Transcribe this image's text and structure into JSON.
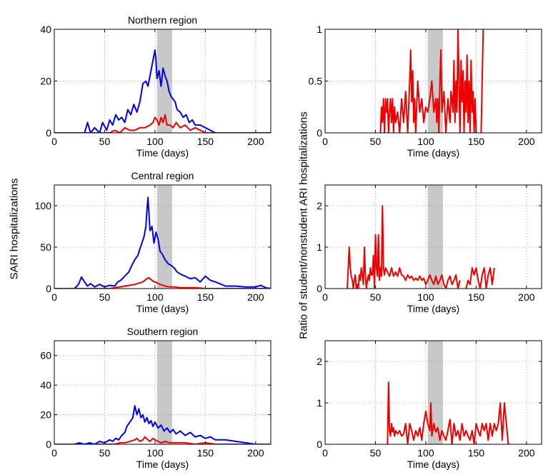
{
  "figure": {
    "ylabel_left": "SARI hospitalizations",
    "ylabel_right": "Ratio of student/nonstudent ARI hospitalizations"
  },
  "colors": {
    "blue": "#0000ee",
    "red": "#ee0000",
    "shade": "#c8c8c8",
    "grid": "#8a8a8a"
  },
  "chart_data": [
    {
      "type": "line",
      "title": "Northern region",
      "xlabel": "Time (days)",
      "ylabel": "",
      "xlim": [
        0,
        215
      ],
      "ylim": [
        0,
        40
      ],
      "xticks": [
        0,
        50,
        100,
        150,
        200
      ],
      "yticks": [
        0,
        20,
        40
      ],
      "ytick_labels": [
        "0",
        "20",
        "40"
      ],
      "grid": true,
      "shaded_x": [
        102,
        117
      ],
      "series": [
        {
          "color": "blue",
          "x": [
            0,
            30,
            33,
            36,
            40,
            45,
            48,
            52,
            55,
            58,
            61,
            64,
            67,
            70,
            73,
            76,
            79,
            82,
            85,
            88,
            91,
            93,
            95,
            97,
            99,
            100,
            101,
            102,
            104,
            106,
            108,
            110,
            112,
            114,
            116,
            118,
            120,
            122,
            125,
            128,
            131,
            134,
            137,
            140,
            145,
            150,
            155,
            160,
            215
          ],
          "y": [
            0,
            0,
            4,
            0,
            2,
            0,
            4,
            1,
            5,
            3,
            7,
            5,
            6,
            4,
            9,
            7,
            11,
            8,
            12,
            19,
            20,
            18,
            22,
            26,
            30,
            32,
            28,
            21,
            24,
            18,
            25,
            22,
            20,
            16,
            14,
            13,
            12,
            9,
            8,
            6,
            7,
            4,
            5,
            3,
            3,
            2,
            1,
            0,
            0
          ]
        },
        {
          "color": "red",
          "x": [
            0,
            55,
            60,
            65,
            70,
            75,
            80,
            85,
            90,
            95,
            98,
            100,
            102,
            104,
            106,
            108,
            110,
            112,
            115,
            118,
            121,
            125,
            130,
            135,
            140,
            145,
            150,
            215
          ],
          "y": [
            0,
            0,
            1,
            0,
            2,
            1,
            1,
            2,
            2,
            3,
            4,
            6,
            5,
            3,
            6,
            4,
            7,
            3,
            3,
            2,
            4,
            2,
            3,
            1,
            2,
            1,
            0,
            0
          ]
        }
      ]
    },
    {
      "type": "line",
      "title": "Central region",
      "xlabel": "Time (days)",
      "ylabel": "",
      "xlim": [
        0,
        215
      ],
      "ylim": [
        0,
        125
      ],
      "xticks": [
        0,
        50,
        100,
        150,
        200
      ],
      "yticks": [
        0,
        50,
        100
      ],
      "ytick_labels": [
        "0",
        "50",
        "100"
      ],
      "grid": true,
      "shaded_x": [
        102,
        117
      ],
      "series": [
        {
          "color": "blue",
          "x": [
            0,
            20,
            24,
            27,
            30,
            33,
            36,
            40,
            45,
            50,
            55,
            60,
            63,
            66,
            70,
            74,
            77,
            80,
            83,
            85,
            87,
            89,
            91,
            92,
            93,
            94,
            95,
            97,
            99,
            101,
            103,
            105,
            107,
            110,
            113,
            116,
            119,
            122,
            126,
            130,
            135,
            140,
            145,
            150,
            155,
            160,
            170,
            180,
            190,
            200,
            205,
            210,
            215
          ],
          "y": [
            0,
            0,
            5,
            14,
            8,
            3,
            6,
            2,
            5,
            2,
            4,
            3,
            8,
            10,
            15,
            20,
            28,
            35,
            40,
            48,
            55,
            62,
            75,
            95,
            110,
            90,
            70,
            75,
            55,
            68,
            60,
            45,
            42,
            35,
            30,
            28,
            25,
            20,
            17,
            15,
            12,
            13,
            8,
            15,
            10,
            8,
            3,
            3,
            2,
            2,
            4,
            1,
            0
          ]
        },
        {
          "color": "red",
          "x": [
            0,
            55,
            60,
            65,
            70,
            75,
            80,
            85,
            88,
            90,
            92,
            94,
            96,
            98,
            100,
            102,
            105,
            108,
            110,
            115,
            120,
            125,
            130,
            140,
            150,
            160,
            170,
            215
          ],
          "y": [
            0,
            0,
            1,
            2,
            3,
            4,
            5,
            7,
            8,
            10,
            12,
            13,
            11,
            9,
            8,
            7,
            5,
            4,
            3,
            2,
            2,
            1,
            1,
            1,
            0,
            0,
            0,
            0
          ]
        }
      ]
    },
    {
      "type": "line",
      "title": "Southern region",
      "xlabel": "Time (days)",
      "ylabel": "",
      "xlim": [
        0,
        215
      ],
      "ylim": [
        0,
        70
      ],
      "xticks": [
        0,
        50,
        100,
        150,
        200
      ],
      "yticks": [
        0,
        20,
        40,
        60
      ],
      "ytick_labels": [
        "0",
        "20",
        "40",
        "60"
      ],
      "grid": true,
      "shaded_x": [
        102,
        117
      ],
      "series": [
        {
          "color": "blue",
          "x": [
            0,
            20,
            25,
            30,
            35,
            40,
            45,
            50,
            55,
            58,
            61,
            64,
            67,
            70,
            72,
            74,
            76,
            78,
            79,
            80,
            82,
            84,
            86,
            88,
            90,
            92,
            94,
            96,
            98,
            100,
            103,
            106,
            109,
            112,
            115,
            118,
            121,
            125,
            130,
            135,
            140,
            145,
            150,
            155,
            160,
            170,
            180,
            190,
            200,
            215
          ],
          "y": [
            0,
            0,
            1,
            0,
            1,
            0,
            2,
            1,
            3,
            2,
            4,
            3,
            6,
            8,
            12,
            14,
            16,
            18,
            22,
            26,
            20,
            24,
            18,
            20,
            15,
            18,
            14,
            16,
            12,
            15,
            11,
            13,
            9,
            11,
            8,
            10,
            7,
            9,
            6,
            8,
            5,
            6,
            4,
            5,
            3,
            3,
            2,
            1,
            0,
            0
          ]
        },
        {
          "color": "red",
          "x": [
            0,
            60,
            65,
            70,
            75,
            80,
            82,
            85,
            88,
            90,
            93,
            95,
            98,
            100,
            103,
            106,
            110,
            115,
            120,
            130,
            140,
            150,
            160,
            215
          ],
          "y": [
            0,
            0,
            1,
            1,
            2,
            3,
            4,
            2,
            3,
            5,
            3,
            2,
            4,
            3,
            2,
            1,
            2,
            1,
            1,
            1,
            0,
            1,
            0,
            0
          ]
        }
      ]
    },
    {
      "type": "line",
      "title": "",
      "xlabel": "Time (days)",
      "ylabel": "",
      "xlim": [
        0,
        215
      ],
      "ylim": [
        0,
        1
      ],
      "xticks": [
        0,
        50,
        100,
        150,
        200
      ],
      "yticks": [
        0,
        0.5,
        1
      ],
      "ytick_labels": [
        "0",
        "0.5",
        "1"
      ],
      "grid": true,
      "shaded_x": [
        102,
        117
      ],
      "series": [
        {
          "color": "red",
          "x": [
            55,
            56,
            57,
            58,
            59,
            60,
            61,
            62,
            63,
            64,
            65,
            66,
            67,
            68,
            69,
            70,
            72,
            74,
            76,
            78,
            80,
            82,
            84,
            85,
            86,
            87,
            88,
            89,
            90,
            91,
            92,
            94,
            96,
            98,
            100,
            102,
            104,
            106,
            108,
            110,
            111,
            112,
            113,
            114,
            115,
            116,
            118,
            120,
            122,
            124,
            125,
            126,
            127,
            128,
            129,
            130,
            131,
            132,
            133,
            134,
            135,
            136,
            137,
            138,
            139,
            140,
            141,
            142,
            143,
            144,
            145,
            146,
            147,
            148,
            149,
            150
          ],
          "y": [
            0,
            0.25,
            0.1,
            0.33,
            0,
            0.33,
            0.2,
            0.33,
            0,
            0.2,
            0.33,
            0.1,
            0.33,
            0,
            0.25,
            0.1,
            0.2,
            0,
            0.33,
            0.1,
            0.4,
            0,
            0.5,
            0.8,
            0.3,
            0.6,
            0.1,
            0.33,
            0,
            0.25,
            0.5,
            0.2,
            0.33,
            0.1,
            0.25,
            0.2,
            0.33,
            0.5,
            0.2,
            0.33,
            0.1,
            0.33,
            0,
            0.5,
            0.8,
            0.2,
            0.4,
            0,
            0.33,
            0.1,
            0.4,
            0.33,
            0.2,
            0.7,
            0.1,
            0.5,
            0.2,
            1,
            0.5,
            0,
            0.7,
            0.3,
            0.6,
            0,
            0.5,
            0.2,
            0.75,
            0.1,
            0.5,
            0,
            0.7,
            0.2,
            0.4,
            0,
            0.33,
            0
          ]
        },
        {
          "color": "red",
          "x": [
            155,
            157
          ],
          "y": [
            0,
            1
          ]
        }
      ]
    },
    {
      "type": "line",
      "title": "",
      "xlabel": "Time (days)",
      "ylabel": "",
      "xlim": [
        0,
        215
      ],
      "ylim": [
        0,
        2.5
      ],
      "xticks": [
        0,
        50,
        100,
        150,
        200
      ],
      "yticks": [
        0,
        1,
        2
      ],
      "ytick_labels": [
        "0",
        "1",
        "2"
      ],
      "grid": true,
      "shaded_x": [
        102,
        117
      ],
      "series": [
        {
          "color": "red",
          "x": [
            22,
            23,
            24,
            25,
            26,
            27,
            28,
            29,
            30,
            31,
            32,
            33,
            34,
            35,
            36,
            37,
            38,
            39,
            40,
            41,
            42,
            43,
            44,
            45,
            46,
            47,
            48,
            49,
            50,
            51,
            52,
            53,
            54,
            55,
            56,
            57,
            58,
            59,
            60,
            62,
            64,
            66,
            68,
            70,
            72,
            74,
            76,
            78,
            80,
            82,
            84,
            86,
            88,
            90,
            92,
            94,
            96,
            98,
            100,
            102,
            104,
            106,
            108,
            110,
            112,
            114,
            116,
            118,
            120,
            122,
            124,
            126,
            128,
            130,
            132,
            134
          ],
          "y": [
            0,
            0.5,
            1,
            0.5,
            0.3,
            0.2,
            0,
            0.2,
            0.33,
            0,
            0.1,
            0,
            0.33,
            0.2,
            0.5,
            0.33,
            0.1,
            1,
            0.33,
            0,
            0.2,
            0.33,
            0.2,
            0.5,
            0.33,
            0.33,
            0.8,
            0,
            1.3,
            0.5,
            0.3,
            1.3,
            0.2,
            0.5,
            0.3,
            2,
            0.5,
            0.33,
            0.5,
            0.4,
            0.3,
            0.5,
            0.3,
            0.4,
            0.3,
            0.5,
            0.33,
            0.3,
            0.2,
            0.33,
            0.25,
            0.3,
            0.2,
            0.25,
            0.2,
            0.3,
            0.2,
            0.25,
            0.1,
            0.2,
            0.33,
            0.2,
            0.1,
            0.3,
            0.1,
            0.2,
            0.33,
            0.1,
            0,
            0.2,
            0.3,
            0.1,
            0.2,
            0.33,
            0,
            0.2
          ]
        },
        {
          "color": "red",
          "x": [
            140,
            142,
            144,
            146,
            148,
            150,
            152,
            154,
            156,
            158,
            160,
            162,
            164,
            166,
            168
          ],
          "y": [
            0,
            0.2,
            0.1,
            0.5,
            0.33,
            0.5,
            0.2,
            0,
            0.33,
            0.5,
            0,
            0.33,
            0.5,
            0.1,
            0.5
          ]
        }
      ]
    },
    {
      "type": "line",
      "title": "",
      "xlabel": "Time (days)",
      "ylabel": "",
      "xlim": [
        0,
        215
      ],
      "ylim": [
        0,
        2.5
      ],
      "xticks": [
        0,
        50,
        100,
        150,
        200
      ],
      "yticks": [
        0,
        1,
        2
      ],
      "ytick_labels": [
        "0",
        "1",
        "2"
      ],
      "grid": true,
      "shaded_x": [
        102,
        117
      ],
      "series": [
        {
          "color": "red",
          "x": [
            62,
            63,
            64,
            65,
            66,
            67,
            68,
            69,
            70,
            72,
            74,
            76,
            78,
            80,
            82,
            84,
            86,
            88,
            90,
            92,
            94,
            96,
            98,
            100,
            102,
            104,
            105,
            106,
            108,
            110,
            112,
            114,
            116,
            118,
            120,
            122,
            124,
            126,
            128,
            130,
            132,
            134,
            136,
            138,
            140,
            142,
            144,
            146,
            148,
            150,
            152,
            154,
            156,
            158,
            160,
            162,
            164,
            166,
            168,
            170,
            172,
            174,
            176,
            178,
            180,
            182
          ],
          "y": [
            0,
            1.5,
            0.33,
            0.2,
            0.5,
            0.3,
            0.4,
            0.2,
            0.33,
            0.25,
            0.33,
            0.2,
            0.25,
            0.5,
            0,
            0.5,
            0.33,
            0.1,
            0.33,
            0.2,
            0.4,
            0.1,
            0.5,
            0.8,
            0.5,
            0.33,
            1,
            0.2,
            0.5,
            0.3,
            0.4,
            0.1,
            0.33,
            0.2,
            0.1,
            0.33,
            0.6,
            0,
            0.5,
            0.2,
            0.33,
            0.1,
            0.5,
            0.2,
            0.33,
            0.2,
            0.1,
            0.33,
            0,
            0.5,
            0.33,
            0.2,
            0.5,
            0.33,
            0.5,
            0.1,
            0.5,
            0.2,
            0.5,
            0.33,
            0.5,
            1,
            0.1,
            1,
            0.5,
            0
          ]
        }
      ]
    }
  ]
}
